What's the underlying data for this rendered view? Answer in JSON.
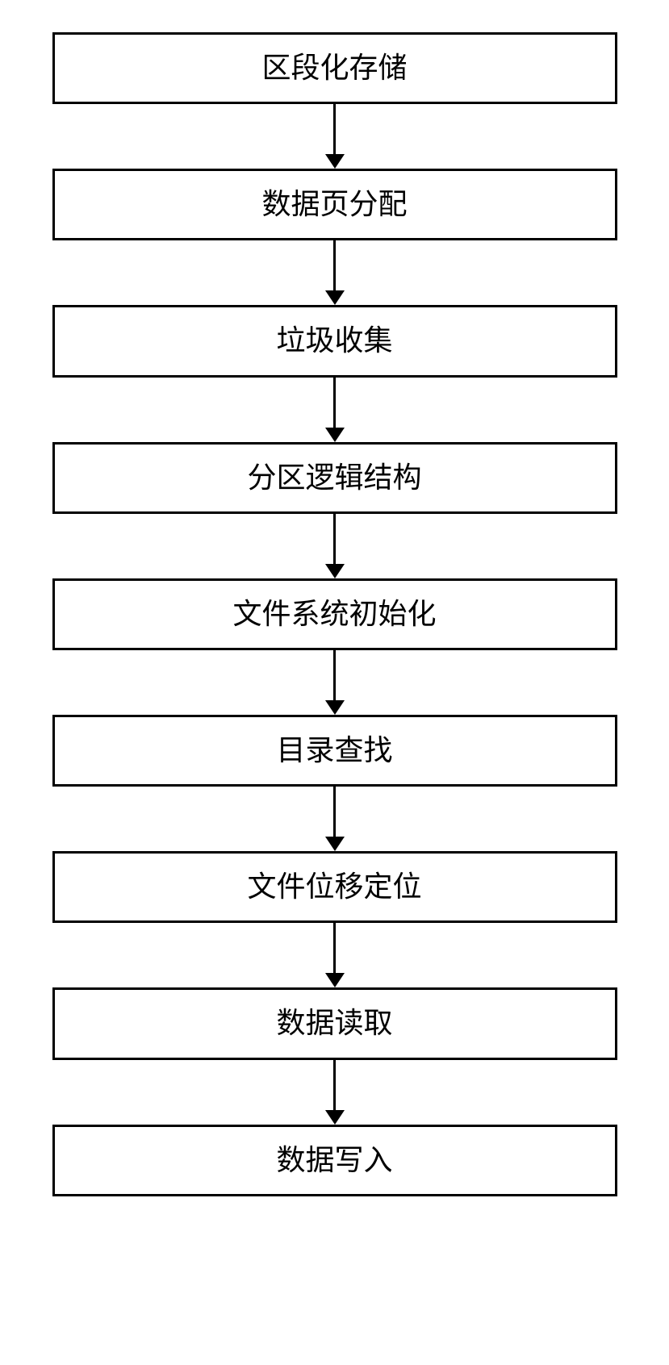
{
  "flowchart": {
    "type": "flowchart",
    "direction": "vertical",
    "box_border_color": "#000000",
    "box_border_width": 3,
    "box_background": "#ffffff",
    "text_color": "#000000",
    "font_size": 36,
    "arrow_color": "#000000",
    "arrow_line_width": 3,
    "arrow_height": 80,
    "steps": [
      {
        "label": "区段化存储"
      },
      {
        "label": "数据页分配"
      },
      {
        "label": "垃圾收集"
      },
      {
        "label": "分区逻辑结构"
      },
      {
        "label": "文件系统初始化"
      },
      {
        "label": "目录查找"
      },
      {
        "label": "文件位移定位"
      },
      {
        "label": "数据读取"
      },
      {
        "label": "数据写入"
      }
    ]
  }
}
